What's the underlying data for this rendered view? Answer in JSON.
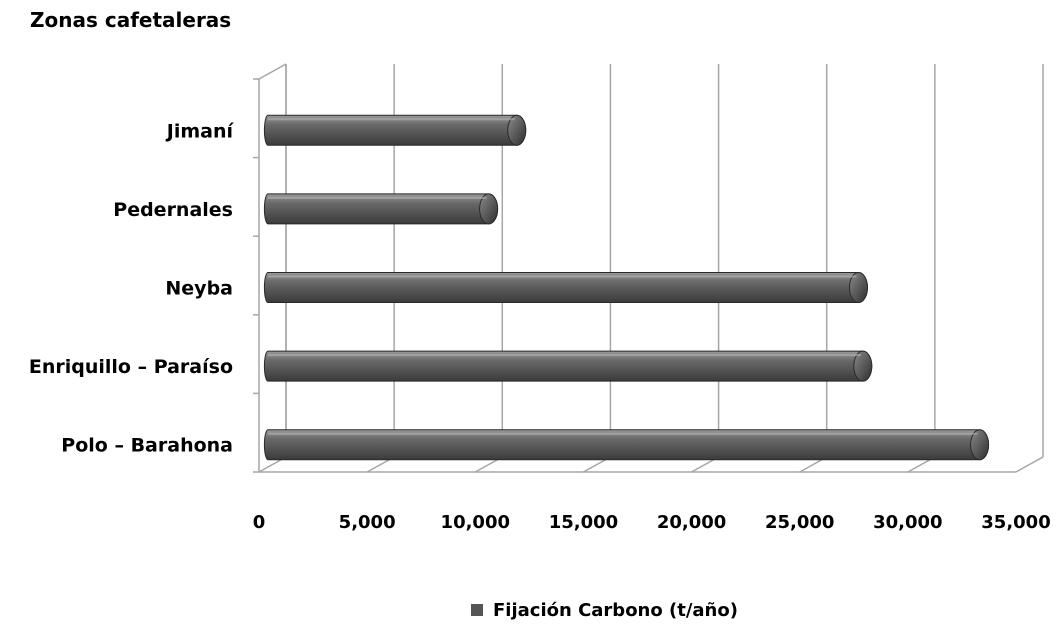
{
  "chart_data": {
    "type": "bar",
    "orientation": "horizontal",
    "style": "3d-cylinder",
    "title": "Zonas cafetaleras",
    "categories": [
      "Jimaní",
      "Pedernales",
      "Neyba",
      "Enriquillo – Paraíso",
      "Polo – Barahona"
    ],
    "series": [
      {
        "name": "Fijación Carbono (t/año)",
        "values": [
          11500,
          10200,
          27300,
          27500,
          32900
        ],
        "color": "#555555"
      }
    ],
    "x_ticks": [
      "0",
      "5,000",
      "10,000",
      "15,000",
      "20,000",
      "25,000",
      "30,000",
      "35,000"
    ],
    "xlim": [
      0,
      35000
    ],
    "grid": true,
    "legend_position": "bottom"
  }
}
